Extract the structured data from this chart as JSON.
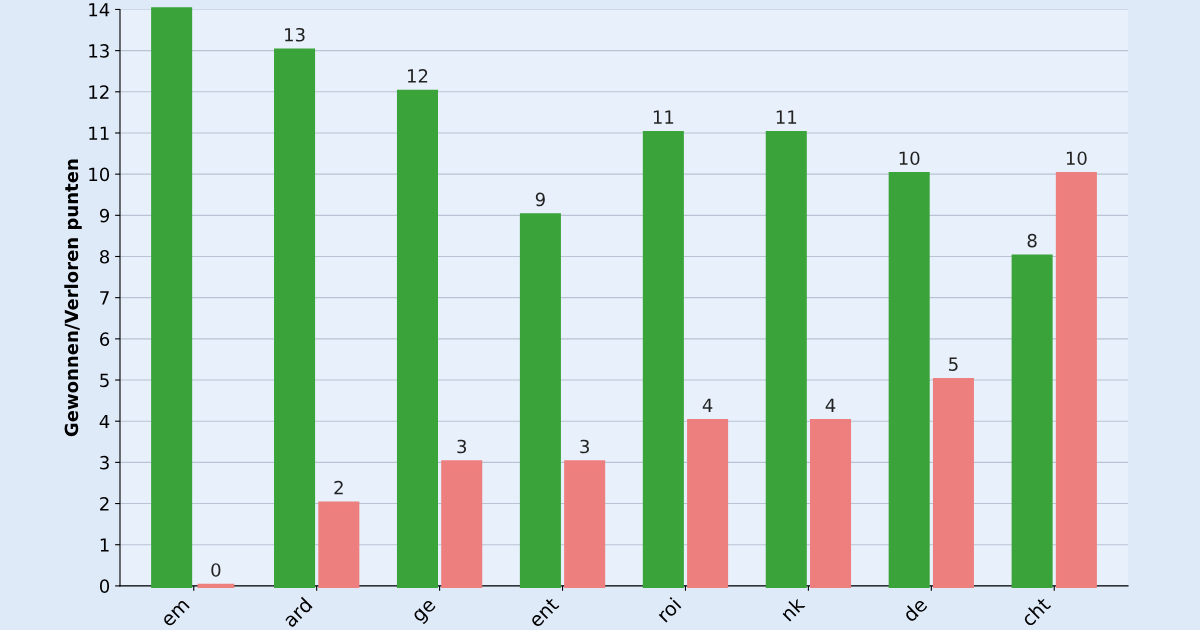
{
  "chart_data": {
    "type": "bar",
    "ylabel": "Gewonnen/Verloren punten",
    "categories": [
      "em",
      "ard",
      "ge",
      "ent",
      "roi",
      "nk",
      "de",
      "cht"
    ],
    "series": [
      {
        "color": "#3aa33a",
        "values": [
          14,
          13,
          12,
          9,
          11,
          11,
          10,
          8
        ],
        "value_labels": [
          null,
          "13",
          "12",
          "9",
          "11",
          "11",
          "10",
          "8"
        ]
      },
      {
        "color": "#ee7f7f",
        "values": [
          0,
          2,
          3,
          3,
          4,
          4,
          5,
          10
        ],
        "value_labels": [
          "0",
          "2",
          "3",
          "3",
          "4",
          "4",
          "5",
          "10"
        ]
      }
    ],
    "ylim": [
      0,
      14
    ],
    "yticks": [
      0,
      1,
      2,
      3,
      4,
      5,
      6,
      7,
      8,
      9,
      10,
      11,
      12,
      13,
      14
    ],
    "grid": "y"
  }
}
